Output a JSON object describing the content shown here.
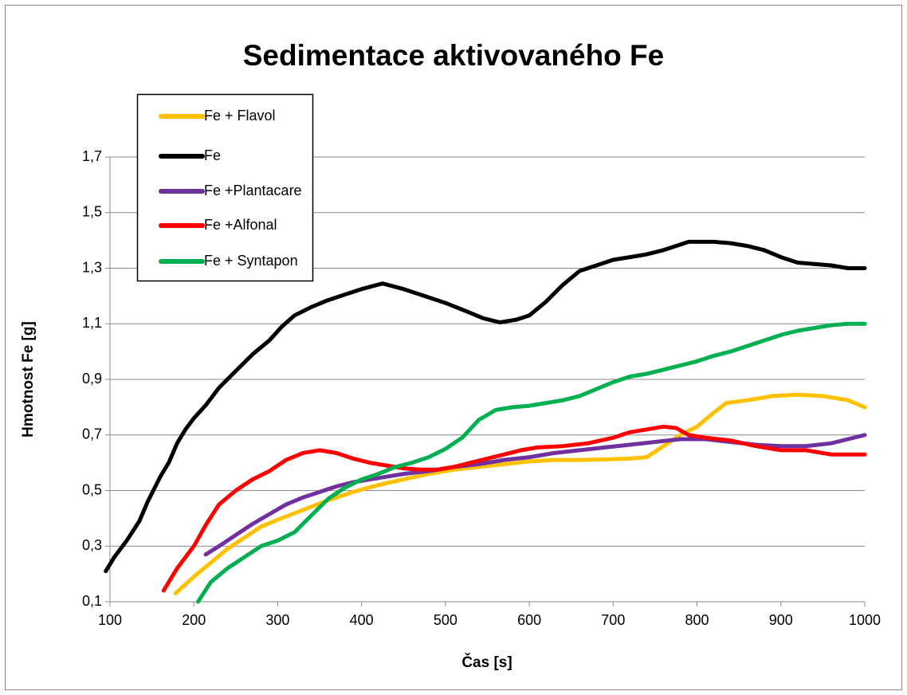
{
  "chart_data": {
    "type": "line",
    "title": "Sedimentace aktivovaného Fe",
    "xlabel": "Čas [s]",
    "ylabel": "Hmotnost Fe [g]",
    "xlim": [
      100,
      1000
    ],
    "xticks": [
      100,
      200,
      300,
      400,
      500,
      600,
      700,
      800,
      900,
      1000
    ],
    "ylim": [
      0.1,
      1.7
    ],
    "yticks": [
      {
        "value": 0.1,
        "label": "0,1"
      },
      {
        "value": 0.3,
        "label": "0,3"
      },
      {
        "value": 0.5,
        "label": "0,5"
      },
      {
        "value": 0.7,
        "label": "0,7"
      },
      {
        "value": 0.9,
        "label": "0,9"
      },
      {
        "value": 1.1,
        "label": "1,1"
      },
      {
        "value": 1.3,
        "label": "1,3"
      },
      {
        "value": 1.5,
        "label": "1,5"
      },
      {
        "value": 1.7,
        "label": "1,7"
      }
    ],
    "grid": true,
    "legend": "upper left",
    "series": [
      {
        "name": "Fe + Flavol",
        "color": "#FFC000",
        "x": [
          178,
          200,
          220,
          240,
          260,
          280,
          300,
          330,
          360,
          390,
          420,
          450,
          480,
          510,
          540,
          570,
          600,
          630,
          660,
          690,
          720,
          740,
          760,
          780,
          800,
          820,
          835,
          860,
          890,
          920,
          950,
          980,
          1000
        ],
        "values": [
          0.13,
          0.19,
          0.24,
          0.29,
          0.33,
          0.37,
          0.395,
          0.43,
          0.465,
          0.495,
          0.52,
          0.54,
          0.56,
          0.575,
          0.585,
          0.595,
          0.605,
          0.61,
          0.61,
          0.612,
          0.615,
          0.62,
          0.66,
          0.7,
          0.73,
          0.78,
          0.815,
          0.825,
          0.84,
          0.845,
          0.84,
          0.825,
          0.8
        ]
      },
      {
        "name": "Fe",
        "color": "#000000",
        "x": [
          95,
          105,
          120,
          135,
          145,
          160,
          170,
          180,
          190,
          200,
          215,
          230,
          250,
          270,
          290,
          305,
          320,
          340,
          360,
          380,
          400,
          425,
          450,
          475,
          500,
          525,
          545,
          565,
          585,
          600,
          620,
          640,
          660,
          680,
          700,
          720,
          740,
          760,
          780,
          790,
          820,
          840,
          860,
          880,
          900,
          920,
          940,
          960,
          980,
          1000
        ],
        "values": [
          0.21,
          0.26,
          0.32,
          0.39,
          0.46,
          0.55,
          0.6,
          0.67,
          0.72,
          0.76,
          0.81,
          0.87,
          0.93,
          0.99,
          1.04,
          1.09,
          1.13,
          1.16,
          1.185,
          1.205,
          1.225,
          1.245,
          1.225,
          1.2,
          1.175,
          1.145,
          1.12,
          1.105,
          1.115,
          1.13,
          1.18,
          1.24,
          1.29,
          1.31,
          1.33,
          1.34,
          1.35,
          1.365,
          1.385,
          1.395,
          1.395,
          1.39,
          1.38,
          1.365,
          1.34,
          1.32,
          1.315,
          1.31,
          1.3,
          1.3
        ]
      },
      {
        "name": "Fe +Plantacare",
        "color": "#7030A0",
        "x": [
          214,
          230,
          250,
          270,
          290,
          310,
          330,
          350,
          370,
          390,
          420,
          450,
          480,
          510,
          540,
          570,
          600,
          630,
          660,
          690,
          720,
          750,
          780,
          810,
          840,
          870,
          900,
          930,
          960,
          980,
          1000
        ],
        "values": [
          0.27,
          0.3,
          0.34,
          0.38,
          0.415,
          0.45,
          0.475,
          0.495,
          0.515,
          0.53,
          0.545,
          0.56,
          0.57,
          0.585,
          0.595,
          0.61,
          0.62,
          0.635,
          0.645,
          0.655,
          0.665,
          0.675,
          0.685,
          0.685,
          0.675,
          0.665,
          0.66,
          0.66,
          0.67,
          0.685,
          0.7
        ]
      },
      {
        "name": "Fe +Alfonal",
        "color": "#FF0000",
        "x": [
          164,
          180,
          200,
          215,
          230,
          250,
          270,
          290,
          310,
          330,
          350,
          370,
          390,
          410,
          430,
          450,
          470,
          490,
          510,
          530,
          550,
          570,
          590,
          610,
          640,
          670,
          700,
          720,
          740,
          760,
          775,
          790,
          810,
          840,
          870,
          900,
          930,
          960,
          1000
        ],
        "values": [
          0.14,
          0.22,
          0.3,
          0.38,
          0.45,
          0.5,
          0.54,
          0.57,
          0.61,
          0.635,
          0.645,
          0.635,
          0.615,
          0.6,
          0.59,
          0.58,
          0.575,
          0.575,
          0.585,
          0.6,
          0.615,
          0.63,
          0.645,
          0.655,
          0.66,
          0.67,
          0.69,
          0.71,
          0.72,
          0.73,
          0.725,
          0.7,
          0.69,
          0.68,
          0.66,
          0.645,
          0.645,
          0.63,
          0.63
        ]
      },
      {
        "name": "Fe + Syntapon",
        "color": "#00B050",
        "x": [
          205,
          220,
          240,
          260,
          280,
          300,
          320,
          340,
          360,
          380,
          400,
          420,
          440,
          460,
          480,
          500,
          520,
          540,
          560,
          580,
          600,
          620,
          640,
          660,
          680,
          700,
          720,
          740,
          760,
          780,
          800,
          820,
          840,
          860,
          880,
          900,
          920,
          940,
          960,
          980,
          1000
        ],
        "values": [
          0.1,
          0.17,
          0.22,
          0.26,
          0.3,
          0.32,
          0.35,
          0.41,
          0.47,
          0.51,
          0.54,
          0.56,
          0.585,
          0.6,
          0.62,
          0.65,
          0.69,
          0.755,
          0.79,
          0.8,
          0.805,
          0.815,
          0.825,
          0.84,
          0.865,
          0.89,
          0.91,
          0.92,
          0.935,
          0.95,
          0.965,
          0.985,
          1.0,
          1.02,
          1.04,
          1.06,
          1.075,
          1.085,
          1.095,
          1.1,
          1.1
        ]
      }
    ]
  }
}
